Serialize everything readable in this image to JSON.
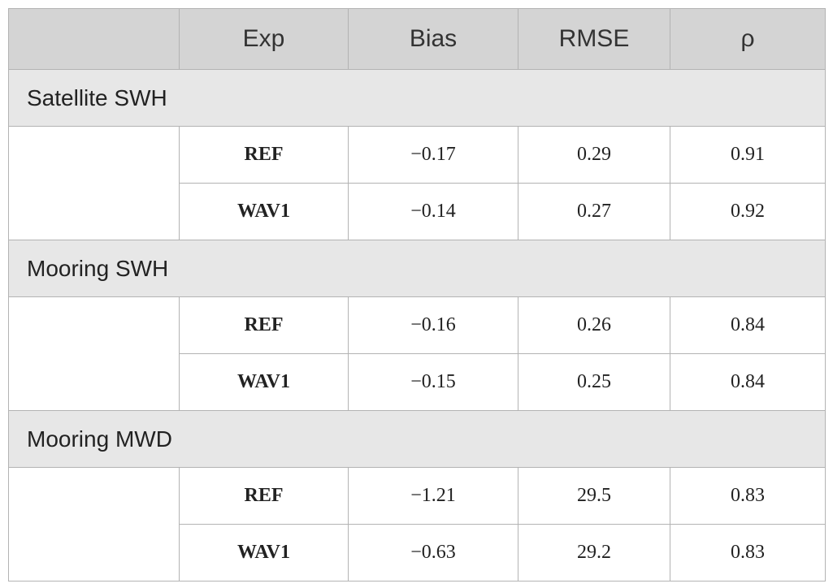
{
  "table": {
    "header": [
      "Exp",
      "Bias",
      "RMSE",
      "ρ"
    ],
    "sections": [
      {
        "title": "Satellite SWH",
        "rows": [
          [
            "REF",
            "−0.17",
            "0.29",
            "0.91"
          ],
          [
            "WAV1",
            "−0.14",
            "0.27",
            "0.92"
          ]
        ]
      },
      {
        "title": "Mooring SWH",
        "rows": [
          [
            "REF",
            "−0.16",
            "0.26",
            "0.84"
          ],
          [
            "WAV1",
            "−0.15",
            "0.25",
            "0.84"
          ]
        ]
      },
      {
        "title": "Mooring MWD",
        "rows": [
          [
            "REF",
            "−1.21",
            "29.5",
            "0.83"
          ],
          [
            "WAV1",
            "−0.63",
            "29.2",
            "0.83"
          ]
        ]
      }
    ]
  }
}
